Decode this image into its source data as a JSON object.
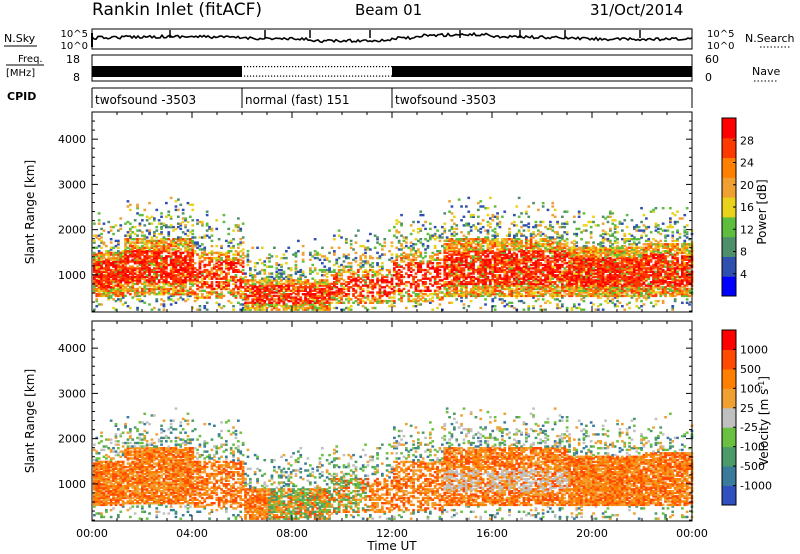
{
  "header": {
    "title": "Rankin Inlet (fitACF)",
    "beam": "Beam 01",
    "date": "31/Oct/2014"
  },
  "nsky_panel": {
    "left_label": "N.Sky",
    "right_label": "N.Search",
    "left_ticks": [
      "10^5",
      "10^0"
    ],
    "right_ticks": [
      "10^5",
      "10^0"
    ]
  },
  "freq_panel": {
    "left_label_line1": "Freq.",
    "left_label_line2": "[MHz]",
    "right_label": "Nave",
    "left_ticks": [
      "18",
      "8"
    ],
    "right_ticks": [
      "60",
      "0"
    ]
  },
  "cpid": {
    "label": "CPID",
    "segments": [
      {
        "name": "twofsound -3503",
        "start_hour": 0,
        "end_hour": 6
      },
      {
        "name": "normal (fast) 151",
        "start_hour": 6,
        "end_hour": 12
      },
      {
        "name": "twofsound -3503",
        "start_hour": 12,
        "end_hour": 24
      }
    ]
  },
  "chart_data": [
    {
      "type": "heatmap",
      "title": "Power",
      "ylabel": "Slant Range [km]",
      "xlabel": "",
      "ylim": [
        180,
        4600
      ],
      "y_ticks": [
        1000,
        2000,
        3000,
        4000
      ],
      "x_range_hours": [
        0,
        24
      ],
      "colorbar": {
        "label": "Power [dB]",
        "ticks": [
          "28",
          "24",
          "20",
          "16",
          "12",
          "8",
          "4"
        ],
        "colors": [
          "#0000ff",
          "#3050b0",
          "#4d8f6a",
          "#5cbe3c",
          "#e8d21a",
          "#f0a030",
          "#ff7f00",
          "#ff3a00",
          "#ff0000"
        ]
      }
    },
    {
      "type": "heatmap",
      "title": "Velocity",
      "ylabel": "Slant Range [km]",
      "xlabel": "Time UT",
      "ylim": [
        180,
        4600
      ],
      "y_ticks": [
        1000,
        2000,
        3000,
        4000
      ],
      "x_ticks": [
        "00:00",
        "04:00",
        "08:00",
        "12:00",
        "16:00",
        "20:00",
        "00:00"
      ],
      "colorbar": {
        "label": "Velocity [m s^-1]",
        "ticks": [
          "1000",
          "500",
          "100",
          "25",
          "-25",
          "-100",
          "-500",
          "-1000"
        ],
        "colors": [
          "#3050c0",
          "#3a7a9a",
          "#4a9a6a",
          "#6ac040",
          "#c0c0c0",
          "#f0a030",
          "#ff7f00",
          "#ff4a00",
          "#ff0000"
        ]
      }
    }
  ]
}
